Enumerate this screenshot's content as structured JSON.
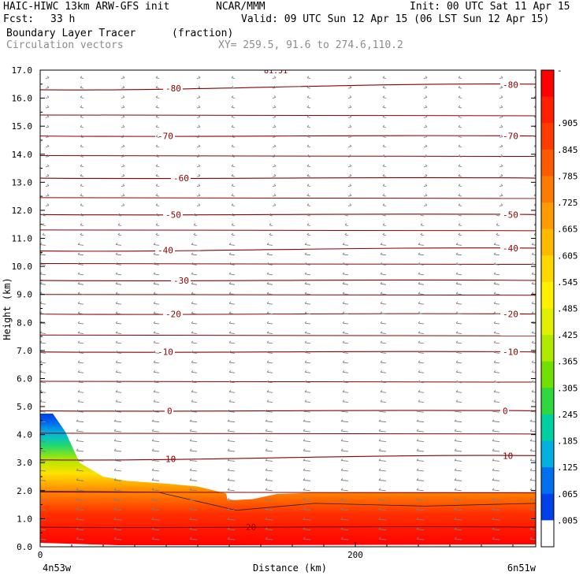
{
  "header": {
    "model": "HAIC-HIWC 13km ARW-GFS init",
    "org": "NCAR/MMM",
    "init": "Init: 00 UTC Sat 11 Apr 15",
    "fcst_label": "Fcst:",
    "fcst_value": "33 h",
    "valid": "Valid: 09 UTC Sun 12 Apr 15 (06 LST Sun 12 Apr 15)",
    "field": "Boundary Layer Tracer",
    "field_units": "(fraction)",
    "overlay": "Circulation vectors",
    "xy": "XY= 259.5, 91.6 to 274.6,110.2"
  },
  "chart_data": {
    "type": "heatmap",
    "title": "Boundary Layer Tracer (fraction)",
    "xlabel": "Distance (km)",
    "ylabel": "Height (km)",
    "xlim": [
      0,
      234
    ],
    "ylim": [
      0,
      17
    ],
    "x_ticks": [
      {
        "value": 0,
        "label": "0"
      },
      {
        "value": 200,
        "label": "200"
      }
    ],
    "x_endpoints": {
      "left": "4n53w",
      "right": "6n51w"
    },
    "y_ticks": [
      0,
      1,
      2,
      3,
      4,
      5,
      6,
      7,
      8,
      9,
      10,
      11,
      12,
      13,
      14,
      15,
      16,
      17
    ],
    "y_tick_labels": [
      "0.0",
      "1.0",
      "2.0",
      "3.0",
      "4.0",
      "5.0",
      "6.0",
      "7.0",
      "8.0",
      "9.0",
      "10.0",
      "11.0",
      "12.0",
      "13.0",
      "14.0",
      "15.0",
      "16.0",
      "17.0"
    ],
    "colorbar": {
      "labels": [
        "-",
        ".905",
        ".845",
        ".785",
        ".725",
        ".665",
        ".605",
        ".545",
        ".485",
        ".425",
        ".365",
        ".305",
        ".245",
        ".185",
        ".125",
        ".065",
        ".005"
      ],
      "colors": [
        "#ff0000",
        "#ff2000",
        "#ff3c00",
        "#ff5a00",
        "#ff7a00",
        "#ff9a00",
        "#ffba00",
        "#ffd800",
        "#fff000",
        "#e0f000",
        "#b0e800",
        "#70e000",
        "#30d840",
        "#00d0a0",
        "#00b0e0",
        "#0070f0",
        "#0040e8",
        "#ffffff"
      ]
    },
    "tracer_top_height": [
      [
        0,
        4.75
      ],
      [
        8,
        4.75
      ],
      [
        16,
        4.1
      ],
      [
        25,
        3.0
      ],
      [
        40,
        2.5
      ],
      [
        55,
        2.35
      ],
      [
        80,
        2.25
      ],
      [
        100,
        2.15
      ],
      [
        118,
        1.9
      ],
      [
        119,
        1.65
      ],
      [
        135,
        1.7
      ],
      [
        150,
        1.88
      ],
      [
        170,
        1.92
      ],
      [
        200,
        1.95
      ],
      [
        234,
        1.95
      ]
    ],
    "isotherms": [
      {
        "value": 20,
        "label": "20",
        "heights": [
          0.7,
          0.7
        ]
      },
      {
        "value": 10,
        "label": "10",
        "heights": [
          3.1,
          3.25
        ]
      },
      {
        "value": 0,
        "label": "0",
        "heights": [
          4.85,
          4.85
        ]
      },
      {
        "value": -10,
        "label": "-10",
        "heights": [
          6.95,
          6.95
        ]
      },
      {
        "value": -20,
        "label": "-20",
        "heights": [
          8.3,
          8.3
        ]
      },
      {
        "value": -30,
        "label": "-30",
        "heights": [
          9.5,
          9.5
        ]
      },
      {
        "value": -40,
        "label": "-40",
        "heights": [
          10.55,
          10.65
        ]
      },
      {
        "value": -50,
        "label": "-50",
        "heights": [
          11.85,
          11.85
        ]
      },
      {
        "value": -60,
        "label": "-60",
        "heights": [
          13.15,
          13.15
        ]
      },
      {
        "value": -70,
        "label": "-70",
        "heights": [
          14.65,
          14.65
        ]
      },
      {
        "value": -80,
        "label": "-80",
        "heights": [
          16.3,
          16.5
        ]
      }
    ],
    "isotherm_colour": "#8b0000",
    "vector_colour": "#808080",
    "top_label": "81.51"
  }
}
